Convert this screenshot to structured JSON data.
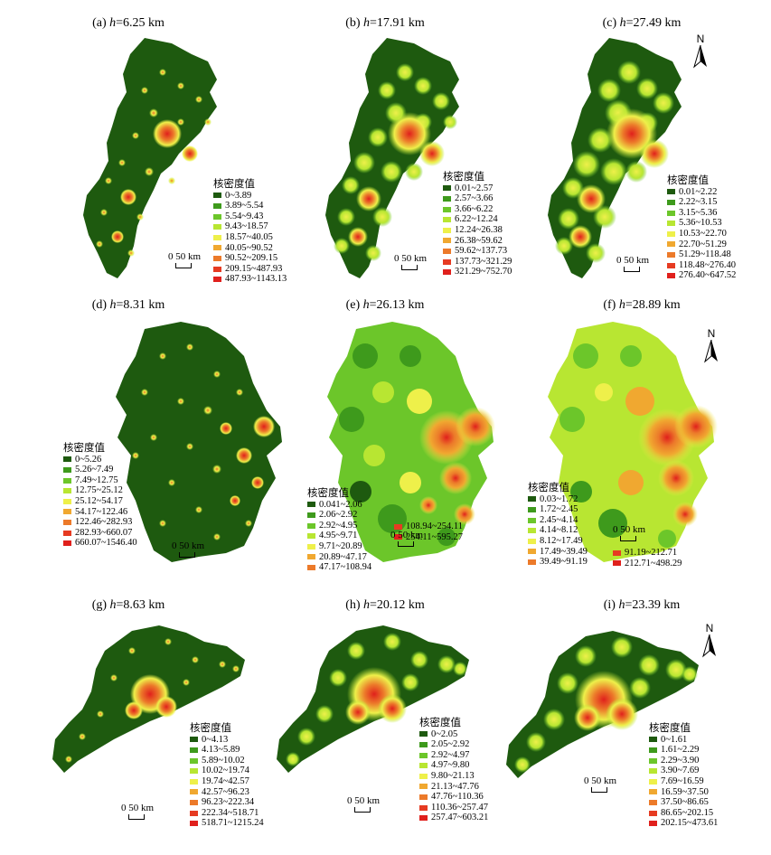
{
  "legend_title": "核密度值",
  "north_label": "N",
  "colors": {
    "dark_green": "#1e5a0f",
    "green": "#3e9a1c",
    "light_green": "#6cc62a",
    "yellow_green": "#b8e632",
    "yellow": "#eef04a",
    "orange": "#f0a830",
    "dark_orange": "#ec7a2a",
    "red": "#e63b22",
    "bright_red": "#e0201c"
  },
  "panels": [
    {
      "label": "(a) ",
      "h_symbol": "h",
      "h_value": "=6.25 km",
      "scale_text": "0 50 km",
      "legend": [
        "0~3.89",
        "3.89~5.54",
        "5.54~9.43",
        "9.43~18.57",
        "18.57~40.05",
        "40.05~90.52",
        "90.52~209.15",
        "209.15~487.93",
        "487.93~1143.13"
      ]
    },
    {
      "label": "(b) ",
      "h_symbol": "h",
      "h_value": "=17.91 km",
      "scale_text": "0 50 km",
      "legend": [
        "0.01~2.57",
        "2.57~3.66",
        "3.66~6.22",
        "6.22~12.24",
        "12.24~26.38",
        "26.38~59.62",
        "59.62~137.73",
        "137.73~321.29",
        "321.29~752.70"
      ]
    },
    {
      "label": "(c) ",
      "h_symbol": "h",
      "h_value": "=27.49 km",
      "scale_text": "0 50 km",
      "legend": [
        "0.01~2.22",
        "2.22~3.15",
        "3.15~5.36",
        "5.36~10.53",
        "10.53~22.70",
        "22.70~51.29",
        "51.29~118.48",
        "118.48~276.40",
        "276.40~647.52"
      ]
    },
    {
      "label": "(d) ",
      "h_symbol": "h",
      "h_value": "=8.31 km",
      "scale_text": "0 50 km",
      "legend": [
        "0~5.26",
        "5.26~7.49",
        "7.49~12.75",
        "12.75~25.12",
        "25.12~54.17",
        "54.17~122.46",
        "122.46~282.93",
        "282.93~660.07",
        "660.07~1546.40"
      ]
    },
    {
      "label": "(e) ",
      "h_symbol": "h",
      "h_value": "=26.13 km",
      "scale_text": "0 50 km",
      "legend": [
        "0.041~2.06",
        "2.06~2.92",
        "2.92~4.95",
        "4.95~9.71",
        "9.71~20.89",
        "20.89~47.17",
        "47.17~108.94",
        "108.94~254.11",
        "254.11~595.27"
      ]
    },
    {
      "label": "(f) ",
      "h_symbol": "h",
      "h_value": "=28.89 km",
      "scale_text": "0 50 km",
      "legend": [
        "0.03~1.72",
        "1.72~2.45",
        "2.45~4.14",
        "4.14~8.12",
        "8.12~17.49",
        "17.49~39.49",
        "39.49~91.19",
        "91.19~212.71",
        "212.71~498.29"
      ]
    },
    {
      "label": "(g) ",
      "h_symbol": "h",
      "h_value": "=8.63 km",
      "scale_text": "0 50 km",
      "legend": [
        "0~4.13",
        "4.13~5.89",
        "5.89~10.02",
        "10.02~19.74",
        "19.74~42.57",
        "42.57~96.23",
        "96.23~222.34",
        "222.34~518.71",
        "518.71~1215.24"
      ]
    },
    {
      "label": "(h) ",
      "h_symbol": "h",
      "h_value": "=20.12 km",
      "scale_text": "0 50 km",
      "legend": [
        "0~2.05",
        "2.05~2.92",
        "2.92~4.97",
        "4.97~9.80",
        "9.80~21.13",
        "21.13~47.76",
        "47.76~110.36",
        "110.36~257.47",
        "257.47~603.21"
      ]
    },
    {
      "label": "(i) ",
      "h_symbol": "h",
      "h_value": "=23.39 km",
      "scale_text": "0 50 km",
      "legend": [
        "0~1.61",
        "1.61~2.29",
        "2.29~3.90",
        "3.90~7.69",
        "7.69~16.59",
        "16.59~37.50",
        "37.50~86.65",
        "86.65~202.15",
        "202.15~473.61"
      ]
    }
  ]
}
